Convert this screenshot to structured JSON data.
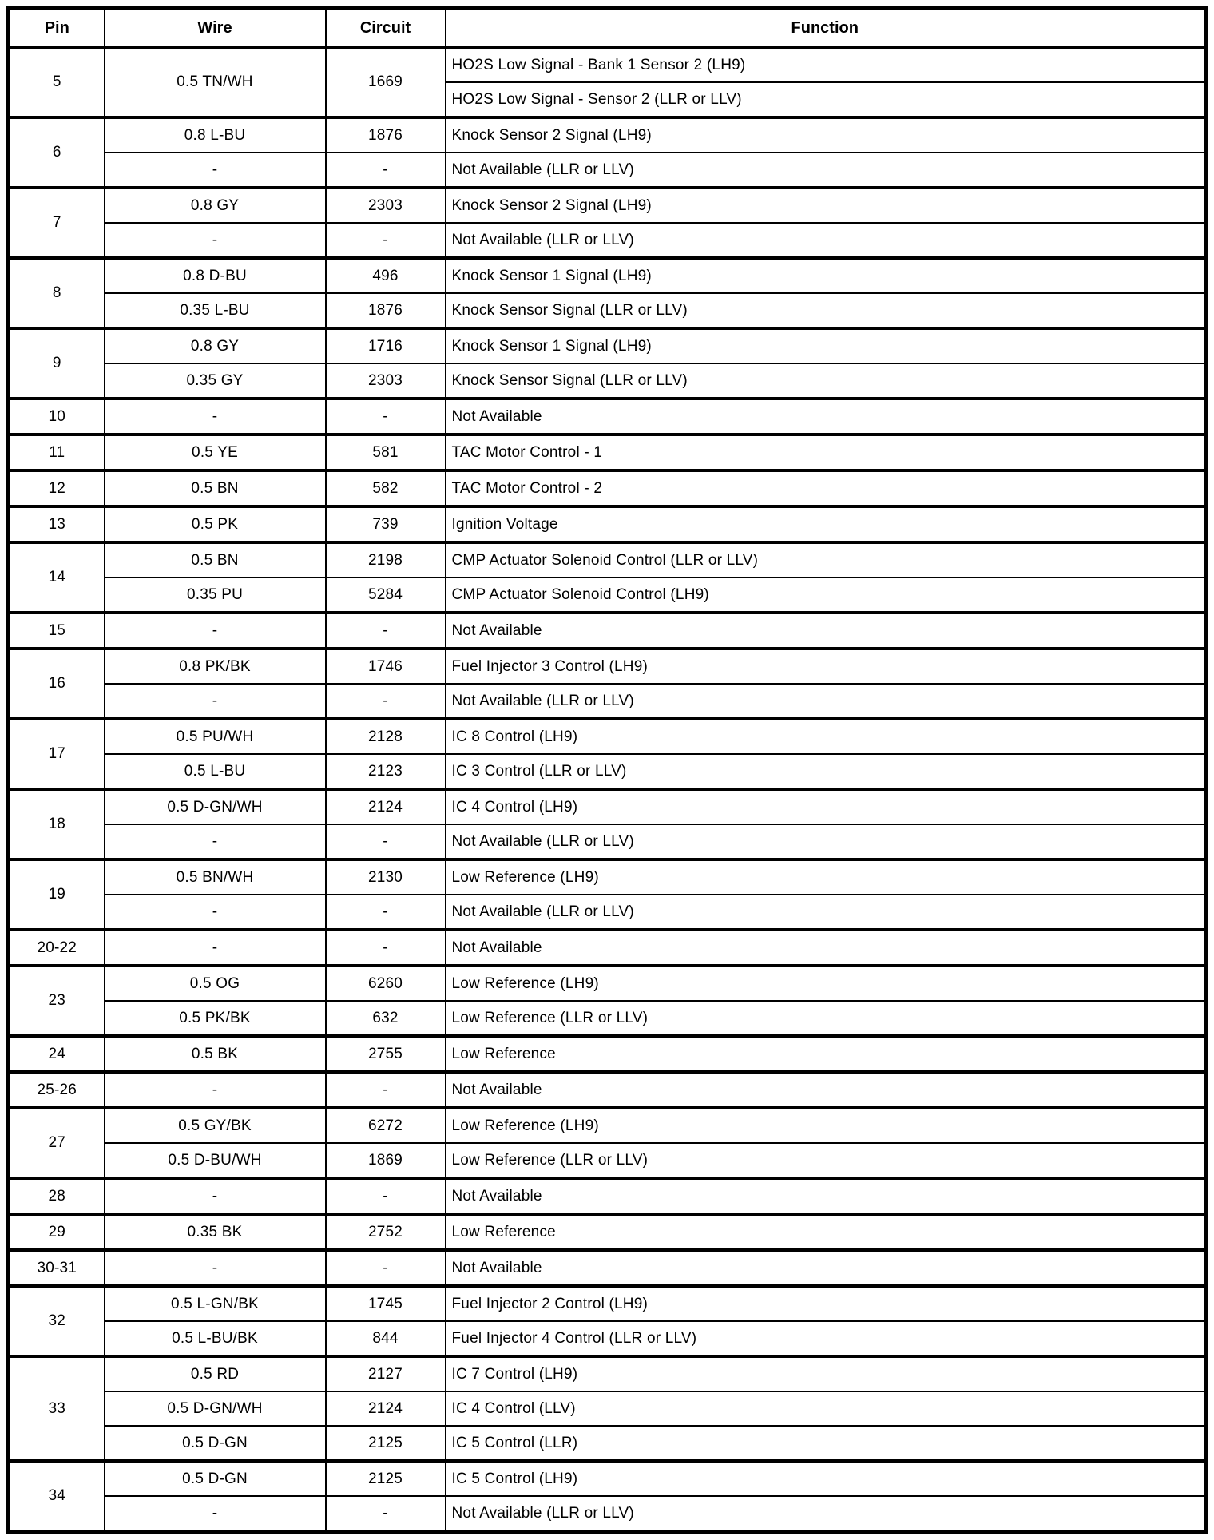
{
  "table": {
    "headers": [
      "Pin",
      "Wire",
      "Circuit",
      "Function"
    ],
    "groups": [
      {
        "pin": "5",
        "shared": true,
        "wire": "0.5 TN/WH",
        "circuit": "1669",
        "rows": [
          {
            "function": "HO2S Low Signal - Bank 1 Sensor 2 (LH9)"
          },
          {
            "function": "HO2S Low Signal - Sensor 2 (LLR or LLV)"
          }
        ]
      },
      {
        "pin": "6",
        "rows": [
          {
            "wire": "0.8 L-BU",
            "circuit": "1876",
            "function": "Knock Sensor 2 Signal (LH9)"
          },
          {
            "wire": "-",
            "circuit": "-",
            "function": "Not Available (LLR or LLV)"
          }
        ]
      },
      {
        "pin": "7",
        "rows": [
          {
            "wire": "0.8 GY",
            "circuit": "2303",
            "function": "Knock Sensor 2 Signal (LH9)"
          },
          {
            "wire": "-",
            "circuit": "-",
            "function": "Not Available (LLR or LLV)"
          }
        ]
      },
      {
        "pin": "8",
        "rows": [
          {
            "wire": "0.8 D-BU",
            "circuit": "496",
            "function": "Knock Sensor 1 Signal (LH9)"
          },
          {
            "wire": "0.35 L-BU",
            "circuit": "1876",
            "function": "Knock Sensor Signal (LLR or LLV)"
          }
        ]
      },
      {
        "pin": "9",
        "rows": [
          {
            "wire": "0.8 GY",
            "circuit": "1716",
            "function": "Knock Sensor 1 Signal (LH9)"
          },
          {
            "wire": "0.35 GY",
            "circuit": "2303",
            "function": "Knock Sensor Signal (LLR or LLV)"
          }
        ]
      },
      {
        "pin": "10",
        "rows": [
          {
            "wire": "-",
            "circuit": "-",
            "function": "Not Available"
          }
        ]
      },
      {
        "pin": "11",
        "rows": [
          {
            "wire": "0.5 YE",
            "circuit": "581",
            "function": "TAC Motor Control - 1"
          }
        ]
      },
      {
        "pin": "12",
        "rows": [
          {
            "wire": "0.5 BN",
            "circuit": "582",
            "function": "TAC Motor Control - 2"
          }
        ]
      },
      {
        "pin": "13",
        "rows": [
          {
            "wire": "0.5 PK",
            "circuit": "739",
            "function": "Ignition Voltage"
          }
        ]
      },
      {
        "pin": "14",
        "rows": [
          {
            "wire": "0.5 BN",
            "circuit": "2198",
            "function": "CMP Actuator Solenoid Control (LLR or LLV)"
          },
          {
            "wire": "0.35 PU",
            "circuit": "5284",
            "function": "CMP Actuator Solenoid Control (LH9)"
          }
        ]
      },
      {
        "pin": "15",
        "rows": [
          {
            "wire": "-",
            "circuit": "-",
            "function": "Not Available"
          }
        ]
      },
      {
        "pin": "16",
        "rows": [
          {
            "wire": "0.8 PK/BK",
            "circuit": "1746",
            "function": "Fuel Injector 3 Control (LH9)"
          },
          {
            "wire": "-",
            "circuit": "-",
            "function": "Not Available (LLR or LLV)"
          }
        ]
      },
      {
        "pin": "17",
        "rows": [
          {
            "wire": "0.5 PU/WH",
            "circuit": "2128",
            "function": "IC 8 Control (LH9)"
          },
          {
            "wire": "0.5 L-BU",
            "circuit": "2123",
            "function": "IC 3 Control (LLR or LLV)"
          }
        ]
      },
      {
        "pin": "18",
        "rows": [
          {
            "wire": "0.5 D-GN/WH",
            "circuit": "2124",
            "function": "IC 4 Control (LH9)"
          },
          {
            "wire": "-",
            "circuit": "-",
            "function": "Not Available (LLR or LLV)"
          }
        ]
      },
      {
        "pin": "19",
        "rows": [
          {
            "wire": "0.5 BN/WH",
            "circuit": "2130",
            "function": "Low Reference (LH9)"
          },
          {
            "wire": "-",
            "circuit": "-",
            "function": "Not Available (LLR or LLV)"
          }
        ]
      },
      {
        "pin": "20-22",
        "rows": [
          {
            "wire": "-",
            "circuit": "-",
            "function": "Not Available"
          }
        ]
      },
      {
        "pin": "23",
        "rows": [
          {
            "wire": "0.5 OG",
            "circuit": "6260",
            "function": "Low Reference (LH9)"
          },
          {
            "wire": "0.5 PK/BK",
            "circuit": "632",
            "function": "Low Reference (LLR or LLV)"
          }
        ]
      },
      {
        "pin": "24",
        "rows": [
          {
            "wire": "0.5 BK",
            "circuit": "2755",
            "function": "Low Reference"
          }
        ]
      },
      {
        "pin": "25-26",
        "rows": [
          {
            "wire": "-",
            "circuit": "-",
            "function": "Not Available"
          }
        ]
      },
      {
        "pin": "27",
        "rows": [
          {
            "wire": "0.5 GY/BK",
            "circuit": "6272",
            "function": "Low Reference (LH9)"
          },
          {
            "wire": "0.5 D-BU/WH",
            "circuit": "1869",
            "function": "Low Reference (LLR or LLV)"
          }
        ]
      },
      {
        "pin": "28",
        "rows": [
          {
            "wire": "-",
            "circuit": "-",
            "function": "Not Available"
          }
        ]
      },
      {
        "pin": "29",
        "rows": [
          {
            "wire": "0.35 BK",
            "circuit": "2752",
            "function": "Low Reference"
          }
        ]
      },
      {
        "pin": "30-31",
        "rows": [
          {
            "wire": "-",
            "circuit": "-",
            "function": "Not Available"
          }
        ]
      },
      {
        "pin": "32",
        "rows": [
          {
            "wire": "0.5 L-GN/BK",
            "circuit": "1745",
            "function": "Fuel Injector 2 Control (LH9)"
          },
          {
            "wire": "0.5 L-BU/BK",
            "circuit": "844",
            "function": "Fuel Injector 4 Control (LLR or LLV)"
          }
        ]
      },
      {
        "pin": "33",
        "rows": [
          {
            "wire": "0.5 RD",
            "circuit": "2127",
            "function": "IC 7 Control (LH9)"
          },
          {
            "wire": "0.5 D-GN/WH",
            "circuit": "2124",
            "function": "IC 4 Control (LLV)"
          },
          {
            "wire": "0.5 D-GN",
            "circuit": "2125",
            "function": "IC 5 Control (LLR)"
          }
        ]
      },
      {
        "pin": "34",
        "rows": [
          {
            "wire": "0.5 D-GN",
            "circuit": "2125",
            "function": "IC 5 Control (LH9)"
          },
          {
            "wire": "-",
            "circuit": "-",
            "function": "Not Available (LLR or LLV)"
          }
        ]
      }
    ]
  }
}
